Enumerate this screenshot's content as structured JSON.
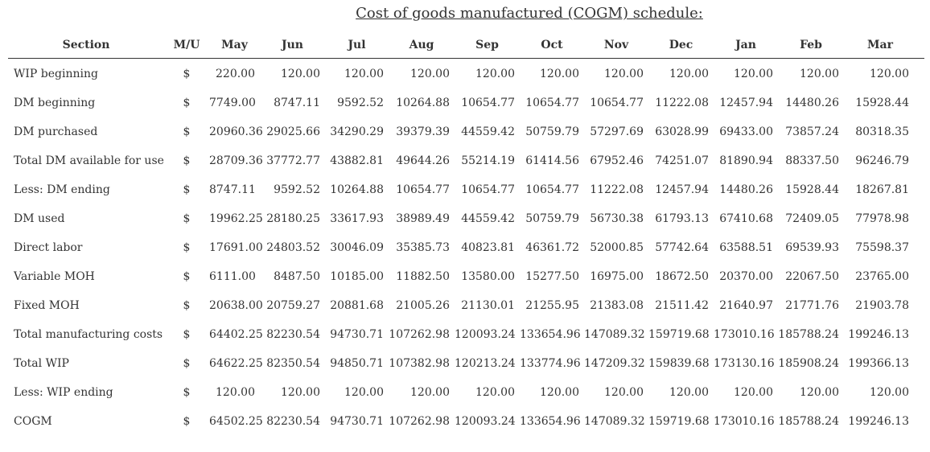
{
  "title": "Cost of goods manufactured (COGM) schedule:",
  "columns": [
    "Section",
    "M/U",
    "May",
    "Jun",
    "Jul",
    "Aug",
    "Sep",
    "Oct",
    "Nov",
    "Dec",
    "Jan",
    "Feb",
    "Mar"
  ],
  "rows": [
    {
      "label": "WIP beginning",
      "unit": "$",
      "values": [
        "220.00",
        "120.00",
        "120.00",
        "120.00",
        "120.00",
        "120.00",
        "120.00",
        "120.00",
        "120.00",
        "120.00",
        "120.00"
      ]
    },
    {
      "label": "DM beginning",
      "unit": "$",
      "values": [
        "7749.00",
        "8747.11",
        "9592.52",
        "10264.88",
        "10654.77",
        "10654.77",
        "10654.77",
        "11222.08",
        "12457.94",
        "14480.26",
        "15928.44"
      ]
    },
    {
      "label": "DM purchased",
      "unit": "$",
      "values": [
        "20960.36",
        "29025.66",
        "34290.29",
        "39379.39",
        "44559.42",
        "50759.79",
        "57297.69",
        "63028.99",
        "69433.00",
        "73857.24",
        "80318.35"
      ]
    },
    {
      "label": "Total DM available for use",
      "unit": "$",
      "values": [
        "28709.36",
        "37772.77",
        "43882.81",
        "49644.26",
        "55214.19",
        "61414.56",
        "67952.46",
        "74251.07",
        "81890.94",
        "88337.50",
        "96246.79"
      ]
    },
    {
      "label": "Less: DM ending",
      "unit": "$",
      "values": [
        "8747.11",
        "9592.52",
        "10264.88",
        "10654.77",
        "10654.77",
        "10654.77",
        "11222.08",
        "12457.94",
        "14480.26",
        "15928.44",
        "18267.81"
      ]
    },
    {
      "label": "DM used",
      "unit": "$",
      "values": [
        "19962.25",
        "28180.25",
        "33617.93",
        "38989.49",
        "44559.42",
        "50759.79",
        "56730.38",
        "61793.13",
        "67410.68",
        "72409.05",
        "77978.98"
      ]
    },
    {
      "label": "Direct labor",
      "unit": "$",
      "values": [
        "17691.00",
        "24803.52",
        "30046.09",
        "35385.73",
        "40823.81",
        "46361.72",
        "52000.85",
        "57742.64",
        "63588.51",
        "69539.93",
        "75598.37"
      ]
    },
    {
      "label": "Variable MOH",
      "unit": "$",
      "values": [
        "6111.00",
        "8487.50",
        "10185.00",
        "11882.50",
        "13580.00",
        "15277.50",
        "16975.00",
        "18672.50",
        "20370.00",
        "22067.50",
        "23765.00"
      ]
    },
    {
      "label": "Fixed MOH",
      "unit": "$",
      "values": [
        "20638.00",
        "20759.27",
        "20881.68",
        "21005.26",
        "21130.01",
        "21255.95",
        "21383.08",
        "21511.42",
        "21640.97",
        "21771.76",
        "21903.78"
      ]
    },
    {
      "label": "Total manufacturing costs",
      "unit": "$",
      "values": [
        "64402.25",
        "82230.54",
        "94730.71",
        "107262.98",
        "120093.24",
        "133654.96",
        "147089.32",
        "159719.68",
        "173010.16",
        "185788.24",
        "199246.13"
      ]
    },
    {
      "label": "Total WIP",
      "unit": "$",
      "values": [
        "64622.25",
        "82350.54",
        "94850.71",
        "107382.98",
        "120213.24",
        "133774.96",
        "147209.32",
        "159839.68",
        "173130.16",
        "185908.24",
        "199366.13"
      ]
    },
    {
      "label": "Less: WIP ending",
      "unit": "$",
      "values": [
        "120.00",
        "120.00",
        "120.00",
        "120.00",
        "120.00",
        "120.00",
        "120.00",
        "120.00",
        "120.00",
        "120.00",
        "120.00"
      ]
    },
    {
      "label": "COGM",
      "unit": "$",
      "values": [
        "64502.25",
        "82230.54",
        "94730.71",
        "107262.98",
        "120093.24",
        "133654.96",
        "147089.32",
        "159719.68",
        "173010.16",
        "185788.24",
        "199246.13"
      ]
    }
  ]
}
